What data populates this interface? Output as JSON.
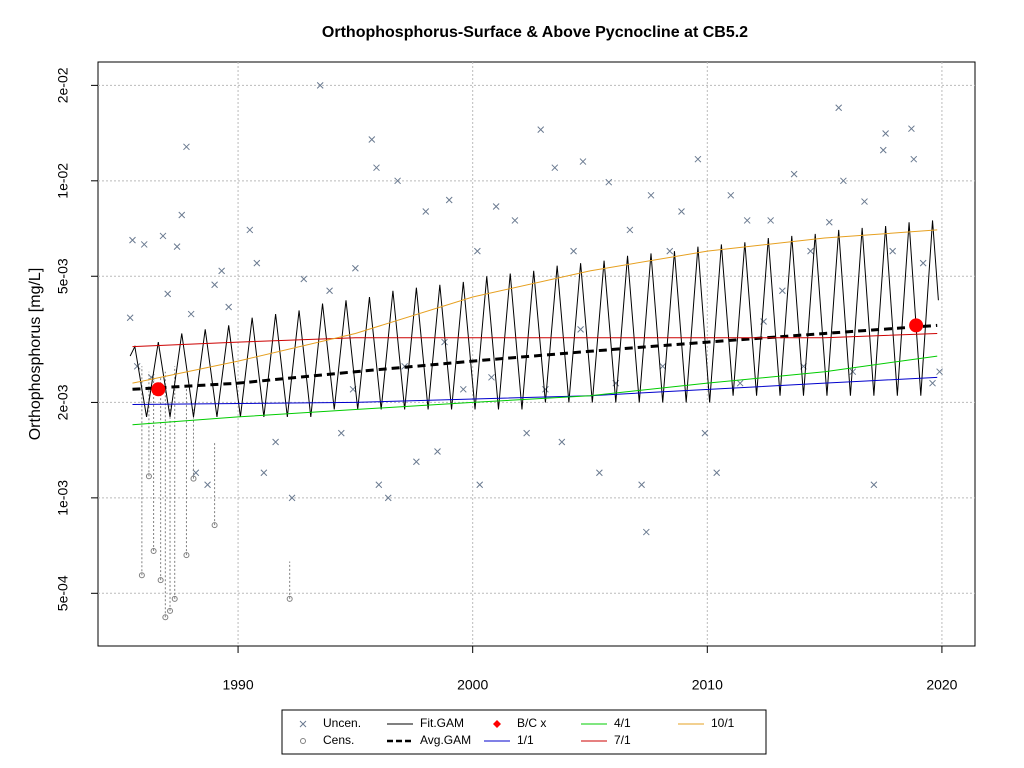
{
  "chart_data": {
    "type": "scatter-line",
    "title": "Orthophosphorus-Surface & Above Pycnocline at CB5.2",
    "y_label": "Orthophosphorus [mg/L]",
    "xlim": [
      1984.03,
      2021.41
    ],
    "ylim": [
      0.000341,
      0.0237
    ],
    "log_y": true,
    "grid": true,
    "legend": "bottom",
    "xticks": [
      1990,
      2000,
      2010,
      2020
    ],
    "yticks": [
      {
        "value": 0.0005,
        "label": "5e-04"
      },
      {
        "value": 0.001,
        "label": "1e-03"
      },
      {
        "value": 0.002,
        "label": "2e-03"
      },
      {
        "value": 0.005,
        "label": "5e-03"
      },
      {
        "value": 0.01,
        "label": "1e-02"
      },
      {
        "value": 0.02,
        "label": "2e-02"
      }
    ],
    "series": [
      {
        "name": "Uncen.",
        "color": "#6a7a90",
        "marker": "x",
        "x": [
          1985.4,
          1985.5,
          1985.7,
          1986.0,
          1986.3,
          1986.8,
          1987.0,
          1987.4,
          1987.6,
          1987.8,
          1988.0,
          1988.2,
          1988.7,
          1989.0,
          1989.3,
          1989.6,
          1990.5,
          1990.8,
          1991.1,
          1991.6,
          1992.3,
          1992.8,
          1993.5,
          1993.9,
          1994.4,
          1995.0,
          1995.7,
          1995.9,
          1996.0,
          1996.4,
          1996.8,
          1997.6,
          1998.0,
          1998.5,
          1999.0,
          1999.6,
          2000.2,
          2000.3,
          2001.0,
          2001.8,
          2002.3,
          2002.9,
          2003.5,
          2003.8,
          2004.3,
          2004.7,
          2005.4,
          2005.8,
          2006.7,
          2007.2,
          2007.4,
          2007.6,
          2008.4,
          2008.9,
          2009.6,
          2009.9,
          2010.4,
          2011.0,
          2011.7,
          2012.7,
          2013.2,
          2013.7,
          2014.4,
          2015.2,
          2015.6,
          2015.8,
          2016.7,
          2017.1,
          2017.5,
          2017.6,
          2017.9,
          2018.7,
          2018.8,
          2019.2,
          2019.6,
          2019.9,
          1994.9,
          1997.1,
          2000.8,
          2003.1,
          2006.1,
          2008.1,
          2011.4,
          2014.1,
          2016.2,
          1998.8,
          2004.6,
          2012.4
        ],
        "values": [
          0.0037,
          0.0065,
          0.0026,
          0.0063,
          0.0024,
          0.0067,
          0.0044,
          0.0062,
          0.0078,
          0.0128,
          0.0038,
          0.0012,
          0.0011,
          0.0047,
          0.0052,
          0.004,
          0.007,
          0.0055,
          0.0012,
          0.0015,
          0.001,
          0.0049,
          0.02,
          0.0045,
          0.0016,
          0.0053,
          0.0135,
          0.011,
          0.0011,
          0.001,
          0.01,
          0.0013,
          0.008,
          0.0014,
          0.0087,
          0.0022,
          0.006,
          0.0011,
          0.0083,
          0.0075,
          0.0016,
          0.0145,
          0.011,
          0.0015,
          0.006,
          0.0115,
          0.0012,
          0.0099,
          0.007,
          0.0011,
          0.00078,
          0.009,
          0.006,
          0.008,
          0.0117,
          0.0016,
          0.0012,
          0.009,
          0.0075,
          0.0075,
          0.0045,
          0.0105,
          0.006,
          0.0074,
          0.017,
          0.01,
          0.0086,
          0.0011,
          0.0125,
          0.0141,
          0.006,
          0.0146,
          0.0117,
          0.0055,
          0.0023,
          0.0025,
          0.0022,
          0.0026,
          0.0024,
          0.0022,
          0.0023,
          0.0026,
          0.0023,
          0.0026,
          0.0025,
          0.0031,
          0.0034,
          0.0036
        ]
      },
      {
        "name": "Cens.",
        "color": "#808080",
        "marker": "circle",
        "x": [
          1985.9,
          1986.2,
          1986.4,
          1986.7,
          1986.9,
          1987.1,
          1987.3,
          1987.8,
          1988.1,
          1989.0,
          1992.2
        ],
        "values": [
          0.00057,
          0.00117,
          0.00068,
          0.00055,
          0.00042,
          0.00044,
          0.00048,
          0.00066,
          0.00115,
          0.00082,
          0.00048
        ],
        "upper": [
          0.0026,
          0.0025,
          0.0024,
          0.0024,
          0.0025,
          0.002,
          0.0026,
          0.0023,
          0.0019,
          0.0015,
          0.00063
        ]
      },
      {
        "name": "Fit.GAM",
        "color": "#000000",
        "line": "solid",
        "x": [
          1985.4,
          1985.6,
          1986.1,
          1986.6,
          1987.1,
          1987.6,
          1988.1,
          1988.6,
          1989.1,
          1989.6,
          1990.1,
          1990.6,
          1991.1,
          1991.6,
          1992.1,
          1992.6,
          1993.1,
          1993.6,
          1994.1,
          1994.6,
          1995.1,
          1995.6,
          1996.1,
          1996.6,
          1997.1,
          1997.6,
          1998.1,
          1998.6,
          1999.1,
          1999.6,
          2000.1,
          2000.6,
          2001.1,
          2001.6,
          2002.1,
          2002.6,
          2003.1,
          2003.6,
          2004.1,
          2004.6,
          2005.1,
          2005.6,
          2006.1,
          2006.6,
          2007.1,
          2007.6,
          2008.1,
          2008.6,
          2009.1,
          2009.6,
          2010.1,
          2010.6,
          2011.1,
          2011.6,
          2012.1,
          2012.6,
          2013.1,
          2013.6,
          2014.1,
          2014.6,
          2015.1,
          2015.6,
          2016.1,
          2016.6,
          2017.1,
          2017.6,
          2018.1,
          2018.6,
          2019.1,
          2019.6,
          2019.85
        ],
        "values": [
          0.0028,
          0.003,
          0.0018,
          0.0031,
          0.0018,
          0.0033,
          0.0018,
          0.0034,
          0.0018,
          0.0035,
          0.0018,
          0.0037,
          0.0018,
          0.0038,
          0.0018,
          0.0039,
          0.0018,
          0.0041,
          0.0019,
          0.0042,
          0.0019,
          0.0043,
          0.0019,
          0.0045,
          0.0019,
          0.0046,
          0.0019,
          0.0047,
          0.0019,
          0.0048,
          0.0019,
          0.005,
          0.0019,
          0.0051,
          0.0019,
          0.0052,
          0.002,
          0.0054,
          0.002,
          0.0055,
          0.002,
          0.0056,
          0.002,
          0.0058,
          0.002,
          0.0059,
          0.002,
          0.006,
          0.002,
          0.0062,
          0.002,
          0.0063,
          0.0021,
          0.0064,
          0.0021,
          0.0066,
          0.0021,
          0.0067,
          0.0021,
          0.0068,
          0.0021,
          0.007,
          0.0021,
          0.0071,
          0.0021,
          0.0072,
          0.0021,
          0.0074,
          0.0021,
          0.0075,
          0.0042
        ]
      },
      {
        "name": "Avg.GAM",
        "color": "#000000",
        "line": "dashed",
        "x": [
          1985.5,
          1990,
          1995,
          2000,
          2005,
          2010,
          2015,
          2019.8
        ],
        "values": [
          0.0022,
          0.0023,
          0.0025,
          0.0027,
          0.0029,
          0.0031,
          0.0033,
          0.0035
        ]
      },
      {
        "name": "B/C x",
        "color": "#ff0000",
        "marker": "dot",
        "x": [
          1986.6,
          2018.9
        ],
        "values": [
          0.0022,
          0.0035
        ]
      },
      {
        "name": "1/1",
        "color": "#0000cc",
        "line": "solid",
        "x": [
          1985.5,
          1995,
          2005,
          2015,
          2019.8
        ],
        "values": [
          0.00197,
          0.002,
          0.0021,
          0.0023,
          0.0024
        ]
      },
      {
        "name": "4/1",
        "color": "#00cc00",
        "line": "solid",
        "x": [
          1985.5,
          1990,
          1995,
          2000,
          2005,
          2010,
          2015,
          2019.8
        ],
        "values": [
          0.0017,
          0.0018,
          0.0019,
          0.002,
          0.0021,
          0.0023,
          0.0025,
          0.0028
        ]
      },
      {
        "name": "7/1",
        "color": "#cc0000",
        "line": "solid",
        "x": [
          1985.5,
          1990,
          1995,
          2000,
          2005,
          2010,
          2015,
          2019.8
        ],
        "values": [
          0.003,
          0.0031,
          0.0032,
          0.0032,
          0.0032,
          0.0032,
          0.0032,
          0.0033
        ]
      },
      {
        "name": "10/1",
        "color": "#e6a020",
        "line": "solid",
        "x": [
          1985.5,
          1990,
          1995,
          2000,
          2005,
          2010,
          2015,
          2019.8
        ],
        "values": [
          0.0023,
          0.0027,
          0.0033,
          0.0043,
          0.0052,
          0.006,
          0.0066,
          0.007
        ]
      }
    ]
  }
}
